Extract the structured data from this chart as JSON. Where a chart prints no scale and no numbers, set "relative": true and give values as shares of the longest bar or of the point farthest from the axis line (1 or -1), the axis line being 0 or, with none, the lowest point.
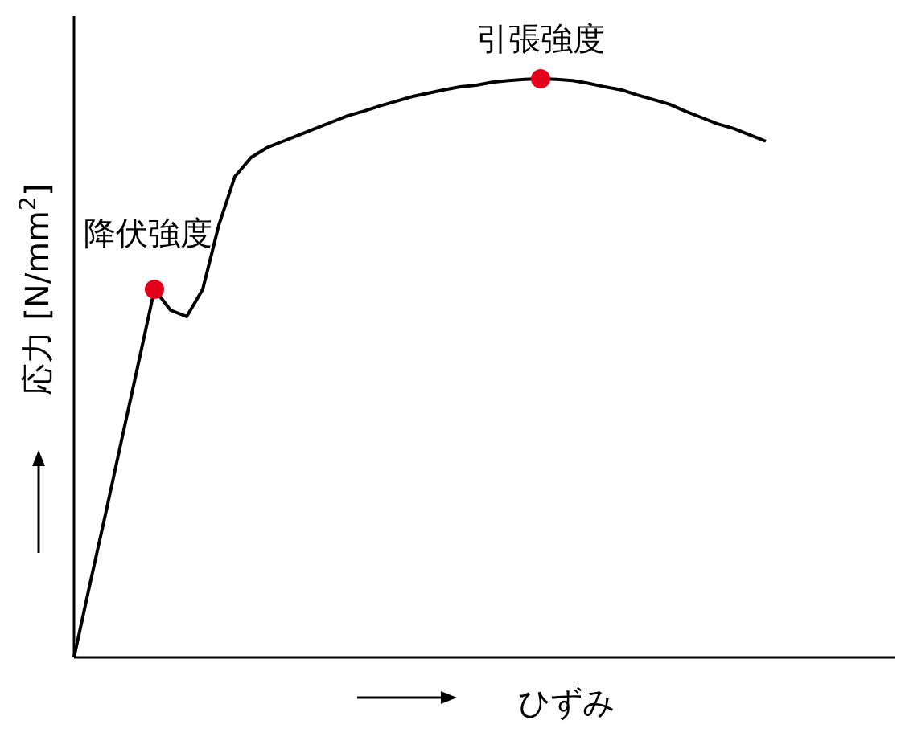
{
  "chart_data": {
    "type": "line",
    "relative": true,
    "xlabel": "ひずみ",
    "ylabel": "応力 [N/mm$^{2}$]",
    "categories": [
      null,
      null,
      null,
      null,
      null,
      null,
      null,
      null,
      null,
      null,
      null,
      null,
      null,
      null,
      null,
      null,
      null,
      null,
      null,
      null,
      null,
      null,
      null,
      null,
      null,
      null,
      null,
      null,
      null,
      null,
      null,
      null,
      null,
      null,
      null,
      null,
      null,
      null,
      null,
      null,
      null,
      null,
      null,
      null,
      null,
      null,
      null,
      null,
      null,
      null,
      null,
      null
    ],
    "series": [
      {
        "color": "#000000",
        "values": [
          0,
          0.128,
          0.253,
          0.381,
          0.508,
          0.636,
          0.6,
          0.589,
          0.636,
          0.747,
          0.831,
          0.864,
          0.881,
          0.892,
          0.903,
          0.914,
          0.925,
          0.936,
          0.944,
          0.953,
          0.961,
          0.969,
          0.975,
          0.981,
          0.986,
          0.989,
          0.994,
          0.997,
          0.999,
          1,
          0.999,
          0.997,
          0.992,
          0.986,
          0.981,
          0.972,
          0.964,
          0.956,
          0.944,
          0.933,
          0.922,
          0.914,
          0.903,
          0.892,
          null,
          null,
          null,
          null,
          null,
          null,
          null,
          null
        ]
      }
    ],
    "annotations": [
      "降伏強度",
      "引張強度"
    ]
  }
}
